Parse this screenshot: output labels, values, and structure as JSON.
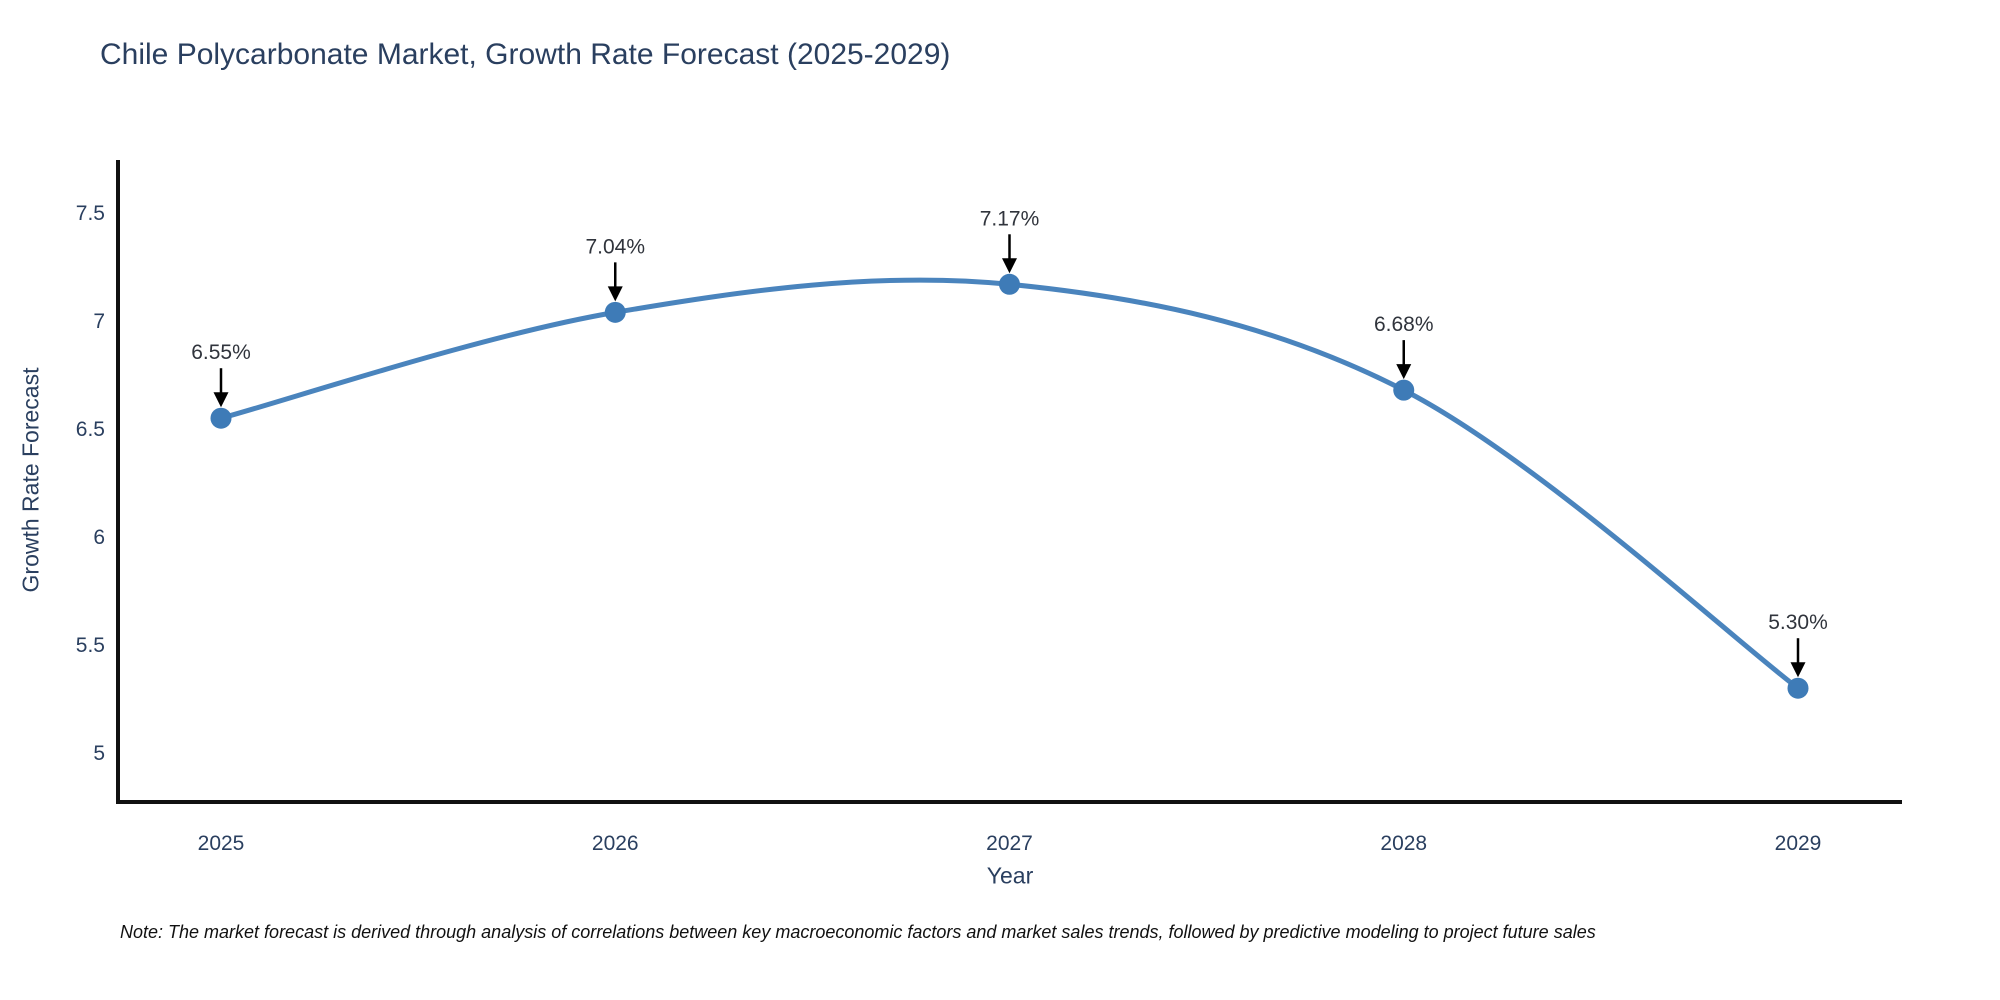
{
  "title": "Chile Polycarbonate Market, Growth Rate Forecast (2025-2029)",
  "note": "Note: The market forecast is derived through analysis of correlations between key macroeconomic factors and market sales trends, followed by predictive modeling to project future sales",
  "chart_data": {
    "type": "line",
    "x": [
      2025,
      2026,
      2027,
      2028,
      2029
    ],
    "y": [
      6.55,
      7.04,
      7.17,
      6.68,
      5.3
    ],
    "point_labels": [
      "6.55%",
      "7.04%",
      "7.17%",
      "6.68%",
      "5.30%"
    ],
    "series_name": "Growth Rate Forecast",
    "title": "Chile Polycarbonate Market, Growth Rate Forecast (2025-2029)",
    "xlabel": "Year",
    "ylabel": "Growth Rate Forecast",
    "xticks": [
      "2025",
      "2026",
      "2027",
      "2028",
      "2029"
    ],
    "yticks": [
      5,
      5.5,
      6,
      6.5,
      7,
      7.5
    ],
    "ylim": [
      4.75,
      7.75
    ],
    "grid": false,
    "legend_position": "none",
    "line_color": "#4a84bd",
    "marker_color": "#3e7bb7",
    "axis_color": "#111111",
    "tick_color": "#2a3f5f",
    "annotation_color": "#30343c",
    "arrow_color": "#000000"
  },
  "colors": {
    "title": "#2a3f5f",
    "background": "#ffffff",
    "note": "#111111"
  }
}
